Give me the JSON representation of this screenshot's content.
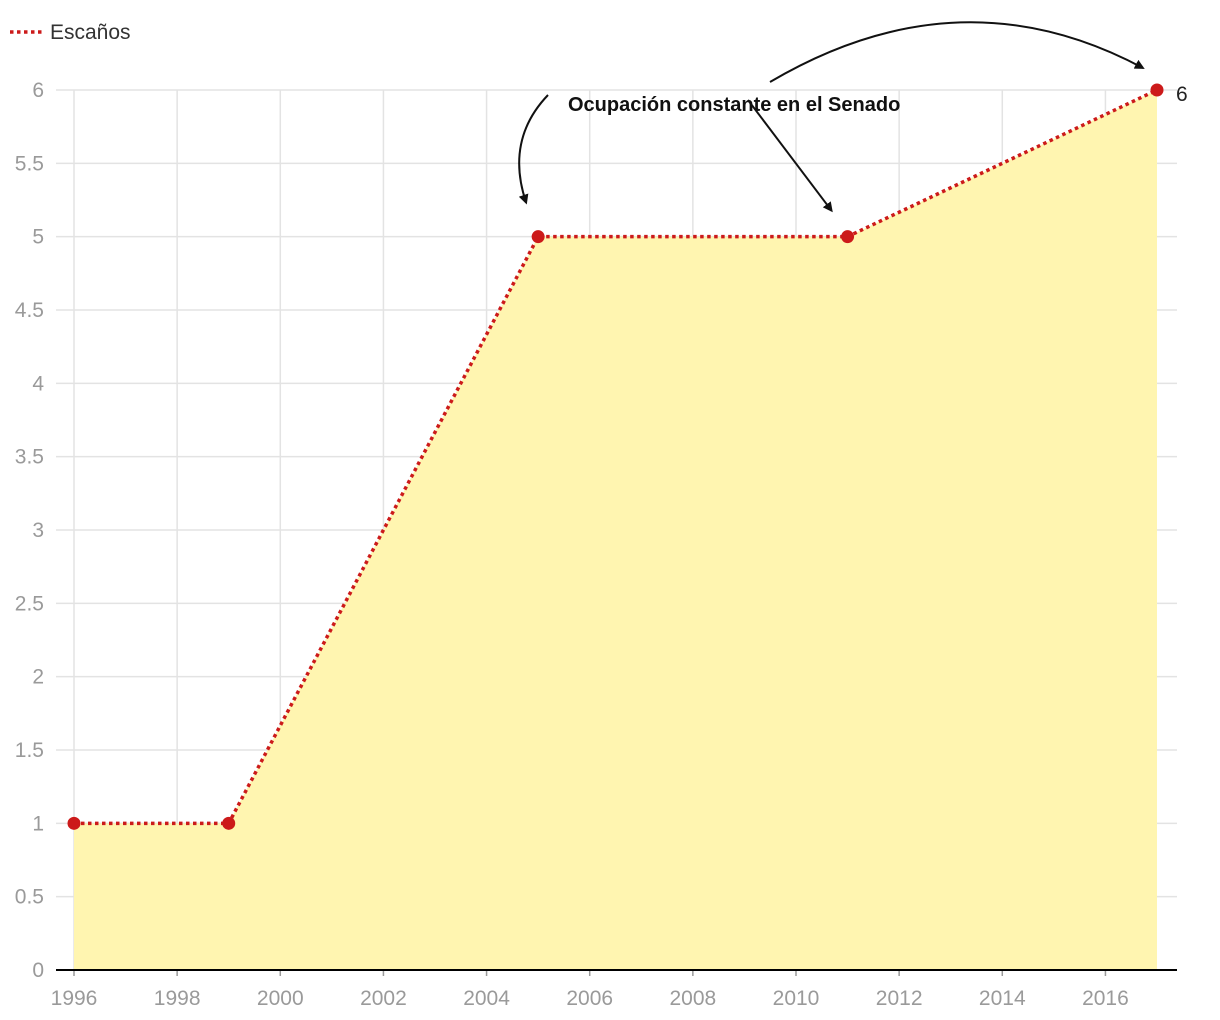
{
  "chart_data": {
    "type": "area",
    "x": [
      1996,
      1999,
      2005,
      2011,
      2017
    ],
    "series": [
      {
        "name": "Escaños",
        "values": [
          1,
          1,
          5,
          5,
          6
        ]
      }
    ],
    "xlim": [
      1996,
      2017
    ],
    "ylim": [
      0,
      6
    ],
    "x_ticks": [
      1996,
      1998,
      2000,
      2002,
      2004,
      2006,
      2008,
      2010,
      2012,
      2014,
      2016
    ],
    "y_ticks": [
      0,
      0.5,
      1,
      1.5,
      2,
      2.5,
      3,
      3.5,
      4,
      4.5,
      5,
      5.5,
      6
    ],
    "grid": true,
    "legend_position": "top-left",
    "annotation": {
      "text": "Ocupación constante en el Senado",
      "targets": [
        2005,
        2011,
        2017
      ]
    },
    "end_label": "6",
    "colors": {
      "line": "#cc1a1a",
      "fill": "#fff5b0",
      "grid": "#e3e3e3",
      "axis": "#000000"
    }
  }
}
